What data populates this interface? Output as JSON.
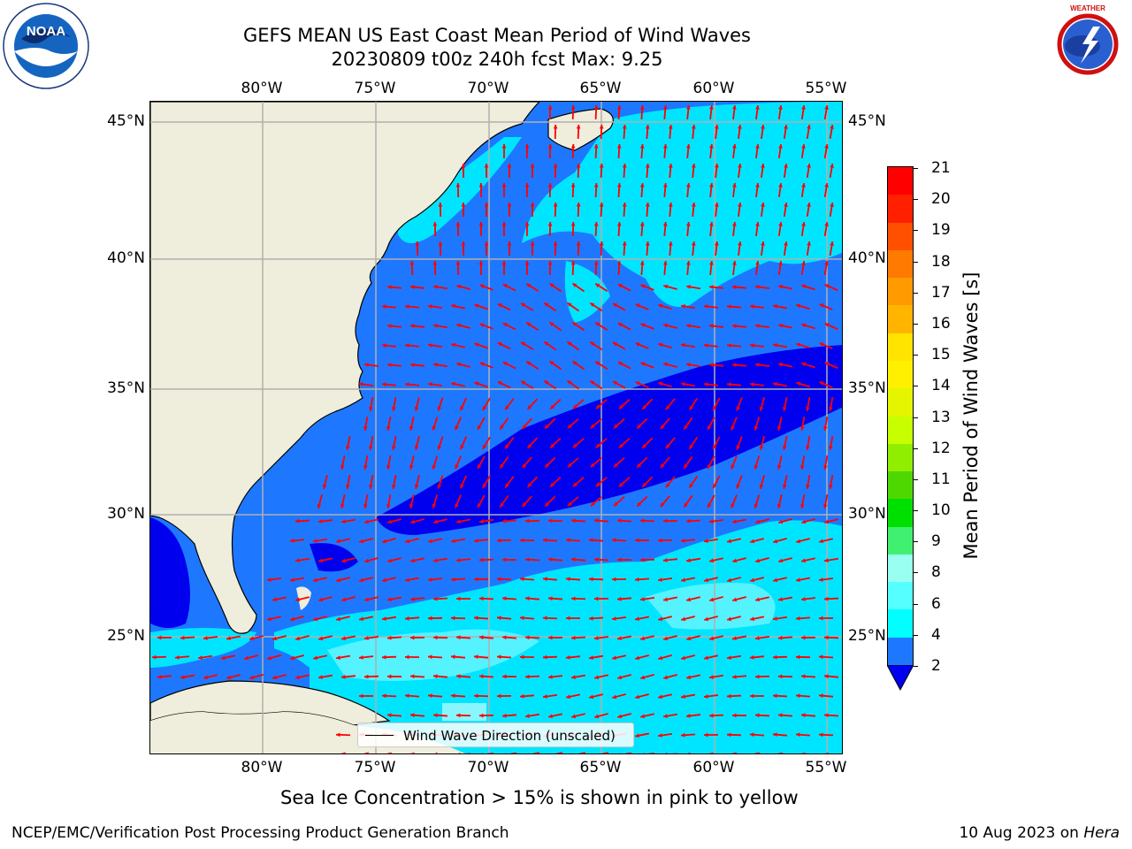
{
  "title": {
    "line1": "GEFS MEAN US East Coast Mean Period of Wind Waves",
    "line2": "20230809 t00z 240h fcst   Max: 9.25"
  },
  "logos": {
    "left": "NOAA",
    "left_ring_text": "NATIONAL OCEANIC AND ATMOSPHERIC ADMINISTRATION · U.S. DEPARTMENT OF COMMERCE",
    "right_ring_text": "NATIONAL WEATHER SERVICE"
  },
  "map": {
    "lon_labels": [
      "80°W",
      "75°W",
      "70°W",
      "65°W",
      "60°W",
      "55°W"
    ],
    "lat_labels": [
      "45°N",
      "40°N",
      "35°N",
      "30°N",
      "25°N"
    ],
    "legend_text": "Wind Wave Direction (unscaled)",
    "colors": {
      "land": "#efeddb",
      "ocean_low": "#1e78ff",
      "ocean_lower": "#0000ee",
      "ocean_mid": "#00e5ff",
      "ocean_midlight": "#55f2ff",
      "arrow": "#ff0000",
      "grid": "#b0b0b0"
    }
  },
  "colorbar": {
    "label": "Mean Period of Wind Waves [s]",
    "ticks": [
      "21",
      "20",
      "19",
      "18",
      "17",
      "16",
      "15",
      "14",
      "13",
      "12",
      "11",
      "10",
      "9",
      "8",
      "6",
      "4",
      "2"
    ],
    "colors_top_to_bottom": [
      "#ff0000",
      "#ff2000",
      "#ff5000",
      "#ff7a00",
      "#ff9a00",
      "#ffb400",
      "#ffe400",
      "#fff000",
      "#e5f500",
      "#c8ff00",
      "#90ee00",
      "#4fd700",
      "#00e000",
      "#40f070",
      "#99fff0",
      "#55ffff",
      "#00ffff",
      "#1e78ff"
    ],
    "under_color": "#0000ee"
  },
  "chart_data": {
    "type": "heatmap",
    "title": "GEFS MEAN US East Coast Mean Period of Wind Waves",
    "subtitle": "20230809 t00z 240h fcst   Max: 9.25",
    "max_value": 9.25,
    "units": "s",
    "x_ticks": [
      "80°W",
      "75°W",
      "70°W",
      "65°W",
      "60°W",
      "55°W"
    ],
    "y_ticks": [
      "45°N",
      "40°N",
      "35°N",
      "30°N",
      "25°N"
    ],
    "colorbar_levels": [
      2,
      4,
      6,
      8,
      9,
      10,
      11,
      12,
      13,
      14,
      15,
      16,
      17,
      18,
      19,
      20,
      21
    ],
    "legend": [
      "Wind Wave Direction (unscaled)"
    ],
    "grid": true
  },
  "notes": {
    "sea_ice": "Sea Ice Concentration > 15% is shown in pink to yellow",
    "footer_left": "NCEP/EMC/Verification Post Processing Product Generation Branch",
    "footer_date": "10 Aug 2023 on ",
    "footer_host": "Hera"
  }
}
